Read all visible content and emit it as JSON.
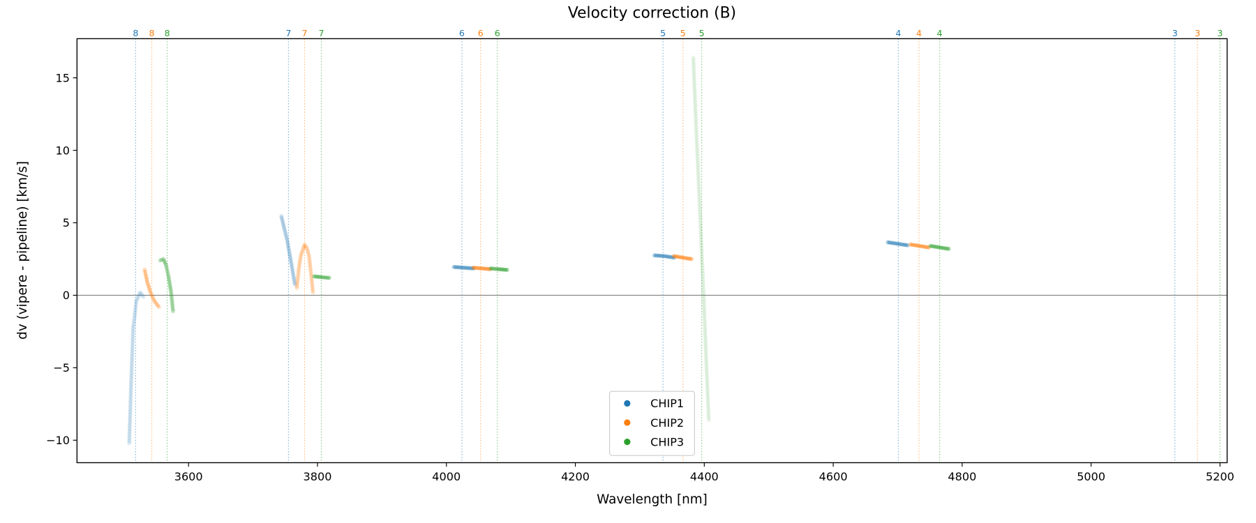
{
  "chart_data": {
    "type": "scatter",
    "title": "Velocity correction (B)",
    "xlabel": "Wavelength [nm]",
    "ylabel": "dv (vipere - pipeline) [km/s]",
    "xlim": [
      3427,
      5211
    ],
    "ylim": [
      -11.55,
      17.7
    ],
    "xticks": [
      3600,
      3800,
      4000,
      4200,
      4400,
      4600,
      4800,
      5000,
      5200
    ],
    "yticks": [
      -10,
      -5,
      0,
      5,
      10,
      15
    ],
    "zero_line": 0,
    "grid": false,
    "legend": {
      "placement": "lower-center",
      "entries": [
        "CHIP1",
        "CHIP2",
        "CHIP3"
      ]
    },
    "colors": {
      "CHIP1": "#1f77b4",
      "CHIP2": "#ff7f0e",
      "CHIP3": "#2ca02c"
    },
    "order_markers": [
      {
        "order": "8",
        "CHIP1": 3518,
        "CHIP2": 3543,
        "CHIP3": 3567
      },
      {
        "order": "7",
        "CHIP1": 3755,
        "CHIP2": 3780,
        "CHIP3": 3806
      },
      {
        "order": "6",
        "CHIP1": 4024,
        "CHIP2": 4053,
        "CHIP3": 4079
      },
      {
        "order": "5",
        "CHIP1": 4336,
        "CHIP2": 4367,
        "CHIP3": 4396
      },
      {
        "order": "4",
        "CHIP1": 4701,
        "CHIP2": 4733,
        "CHIP3": 4765
      },
      {
        "order": "3",
        "CHIP1": 5130,
        "CHIP2": 5165,
        "CHIP3": 5200
      }
    ],
    "series": [
      {
        "chip": "CHIP1",
        "order": "8",
        "alpha": 0.25,
        "points": [
          [
            3508,
            -10.2
          ],
          [
            3511,
            -6
          ],
          [
            3514,
            -2.3
          ],
          [
            3519,
            -0.4
          ],
          [
            3525,
            0.2
          ],
          [
            3530,
            -0.1
          ]
        ]
      },
      {
        "chip": "CHIP2",
        "order": "8",
        "alpha": 0.45,
        "points": [
          [
            3532,
            1.75
          ],
          [
            3536,
            0.9
          ],
          [
            3541,
            0.2
          ],
          [
            3547,
            -0.4
          ],
          [
            3554,
            -0.8
          ]
        ]
      },
      {
        "chip": "CHIP3",
        "order": "8",
        "alpha": 0.45,
        "points": [
          [
            3556,
            2.4
          ],
          [
            3561,
            2.5
          ],
          [
            3565,
            2.1
          ],
          [
            3569,
            1.3
          ],
          [
            3573,
            0.2
          ],
          [
            3576,
            -1.1
          ]
        ]
      },
      {
        "chip": "CHIP1",
        "order": "7",
        "alpha": 0.35,
        "points": [
          [
            3744,
            5.45
          ],
          [
            3748,
            4.7
          ],
          [
            3753,
            3.8
          ],
          [
            3759,
            2.3
          ],
          [
            3765,
            0.75
          ]
        ]
      },
      {
        "chip": "CHIP2",
        "order": "7",
        "alpha": 0.35,
        "points": [
          [
            3768,
            0.5
          ],
          [
            3771,
            1.8
          ],
          [
            3774,
            2.7
          ],
          [
            3780,
            3.5
          ],
          [
            3784,
            3.2
          ],
          [
            3787,
            2.7
          ],
          [
            3790,
            1.5
          ],
          [
            3793,
            0.2
          ]
        ]
      },
      {
        "chip": "CHIP3",
        "order": "7",
        "alpha": 0.7,
        "points": [
          [
            3795,
            1.3
          ],
          [
            3806,
            1.25
          ],
          [
            3818,
            1.2
          ]
        ]
      },
      {
        "chip": "CHIP1",
        "order": "6",
        "alpha": 0.75,
        "points": [
          [
            4012,
            1.95
          ],
          [
            4027,
            1.9
          ],
          [
            4042,
            1.85
          ]
        ]
      },
      {
        "chip": "CHIP2",
        "order": "6",
        "alpha": 0.75,
        "points": [
          [
            4042,
            1.9
          ],
          [
            4055,
            1.85
          ],
          [
            4068,
            1.8
          ]
        ]
      },
      {
        "chip": "CHIP3",
        "order": "6",
        "alpha": 0.75,
        "points": [
          [
            4069,
            1.85
          ],
          [
            4081,
            1.8
          ],
          [
            4094,
            1.75
          ]
        ]
      },
      {
        "chip": "CHIP1",
        "order": "5",
        "alpha": 0.75,
        "points": [
          [
            4323,
            2.75
          ],
          [
            4338,
            2.7
          ],
          [
            4353,
            2.6
          ]
        ]
      },
      {
        "chip": "CHIP2",
        "order": "5",
        "alpha": 0.75,
        "points": [
          [
            4353,
            2.7
          ],
          [
            4366,
            2.6
          ],
          [
            4380,
            2.5
          ]
        ]
      },
      {
        "chip": "CHIP3",
        "order": "5",
        "alpha": 0.15,
        "points": [
          [
            4383,
            16.4
          ],
          [
            4387,
            12
          ],
          [
            4391,
            8
          ],
          [
            4395,
            4
          ],
          [
            4399,
            0
          ],
          [
            4403,
            -4.5
          ],
          [
            4407,
            -8.6
          ]
        ]
      },
      {
        "chip": "CHIP1",
        "order": "4",
        "alpha": 0.75,
        "points": [
          [
            4685,
            3.65
          ],
          [
            4700,
            3.55
          ],
          [
            4715,
            3.45
          ]
        ]
      },
      {
        "chip": "CHIP2",
        "order": "4",
        "alpha": 0.75,
        "points": [
          [
            4720,
            3.5
          ],
          [
            4734,
            3.4
          ],
          [
            4748,
            3.3
          ]
        ]
      },
      {
        "chip": "CHIP3",
        "order": "4",
        "alpha": 0.75,
        "points": [
          [
            4751,
            3.4
          ],
          [
            4765,
            3.3
          ],
          [
            4779,
            3.2
          ]
        ]
      }
    ]
  }
}
